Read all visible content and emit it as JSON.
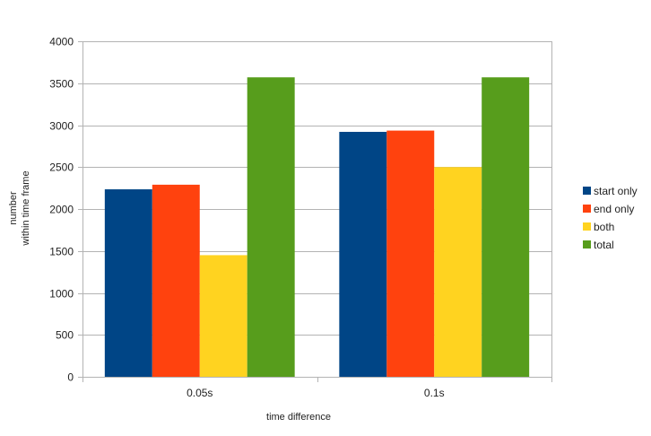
{
  "chart_data": {
    "type": "bar",
    "title": "",
    "xlabel": "time difference",
    "ylabel_lines": [
      "number",
      "within time frame"
    ],
    "categories": [
      "0.05s",
      "0.1s"
    ],
    "series": [
      {
        "name": "start only",
        "color": "#004586",
        "values": [
          2235,
          2920
        ]
      },
      {
        "name": "end only",
        "color": "#ff420e",
        "values": [
          2290,
          2935
        ]
      },
      {
        "name": "both",
        "color": "#ffd320",
        "values": [
          1450,
          2500
        ]
      },
      {
        "name": "total",
        "color": "#579d1c",
        "values": [
          3570,
          3570
        ]
      }
    ],
    "ylim": [
      0,
      4000
    ],
    "yticks": [
      0,
      500,
      1000,
      1500,
      2000,
      2500,
      3000,
      3500,
      4000
    ],
    "grid": true,
    "legend_position": "right"
  }
}
